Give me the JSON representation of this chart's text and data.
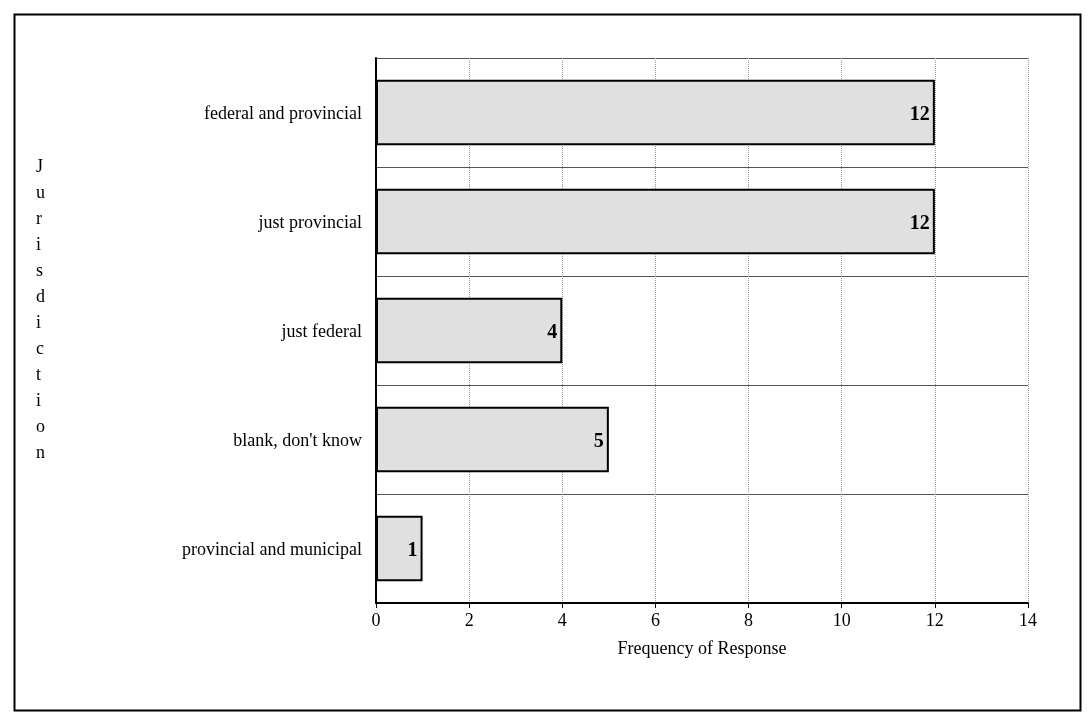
{
  "chart_data": {
    "type": "bar",
    "orientation": "horizontal",
    "xlabel": "Frequency of Response",
    "ylabel": "Jurisdiction",
    "categories": [
      "federal and provincial",
      "just provincial",
      "just federal",
      "blank, don't know",
      "provincial and municipal"
    ],
    "values": [
      12,
      12,
      4,
      5,
      1
    ],
    "color": "#e0e0e0",
    "xlim": [
      0,
      14
    ],
    "xticks": [
      0,
      2,
      4,
      6,
      8,
      10,
      12,
      14
    ],
    "grid": true,
    "data_labels": true
  }
}
